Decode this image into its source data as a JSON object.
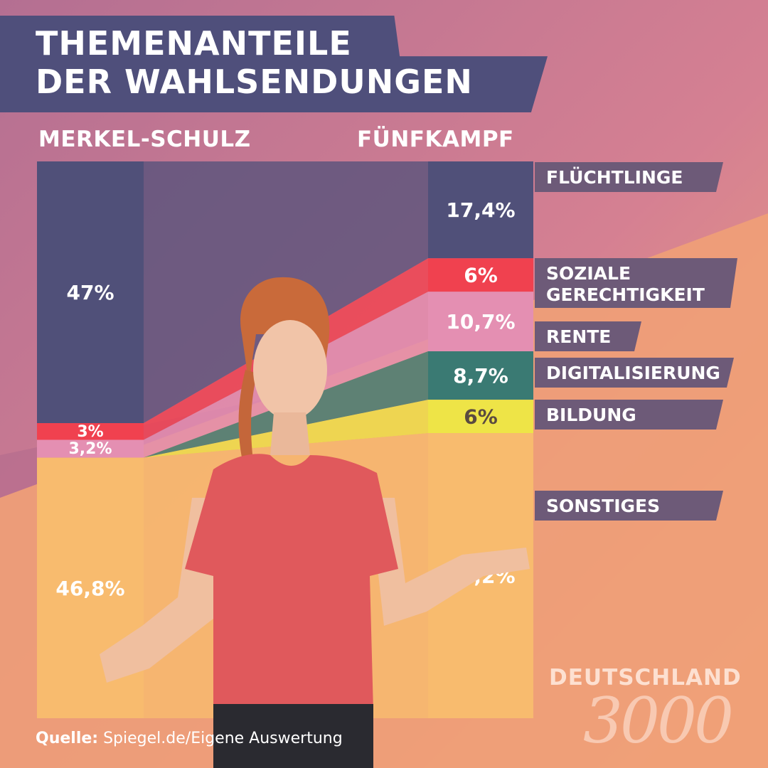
{
  "title_line1": "THEMENANTEILE",
  "title_line2": "DER WAHLSENDUNGEN",
  "source_label": "Quelle:",
  "source_text": "Spiegel.de/Eigene Auswertung",
  "brand": {
    "text": "DEUTSCHLAND",
    "number": "3000"
  },
  "colors": {
    "background_top": "#c6788f",
    "background_bottom": "#f1a67e",
    "title_banner": "#4f4f7b",
    "label_tag": "#6d5a78",
    "text": "#ffffff"
  },
  "chart_data": {
    "type": "bar",
    "subtype": "stacked-100",
    "categories": [
      "MERKEL-SCHULZ",
      "FÜNFKAMPF"
    ],
    "series": [
      {
        "name": "FLÜCHTLINGE",
        "values": [
          47,
          17.4
        ],
        "value_labels": [
          "47%",
          "17,4%"
        ],
        "color": "#505079"
      },
      {
        "name": "SOZIALE\nGERECHTIGKEIT",
        "values": [
          3,
          6
        ],
        "value_labels": [
          "3%",
          "6%"
        ],
        "color": "#f0414f"
      },
      {
        "name": "RENTE",
        "values": [
          3.2,
          10.7
        ],
        "value_labels": [
          "3,2%",
          "10,7%"
        ],
        "color": "#e48fb2"
      },
      {
        "name": "DIGITALISIERUNG",
        "values": [
          0,
          8.7
        ],
        "value_labels": [
          "",
          "8,7%"
        ],
        "color": "#3a7a73"
      },
      {
        "name": "BILDUNG",
        "values": [
          0,
          6
        ],
        "value_labels": [
          "",
          "6%"
        ],
        "color": "#eee447"
      },
      {
        "name": "SONSTIGES",
        "values": [
          46.8,
          51.2
        ],
        "value_labels": [
          "46,8%",
          "51,2%"
        ],
        "color": "#f8bb6e"
      }
    ],
    "ylim": [
      0,
      100
    ],
    "legend": "right"
  }
}
